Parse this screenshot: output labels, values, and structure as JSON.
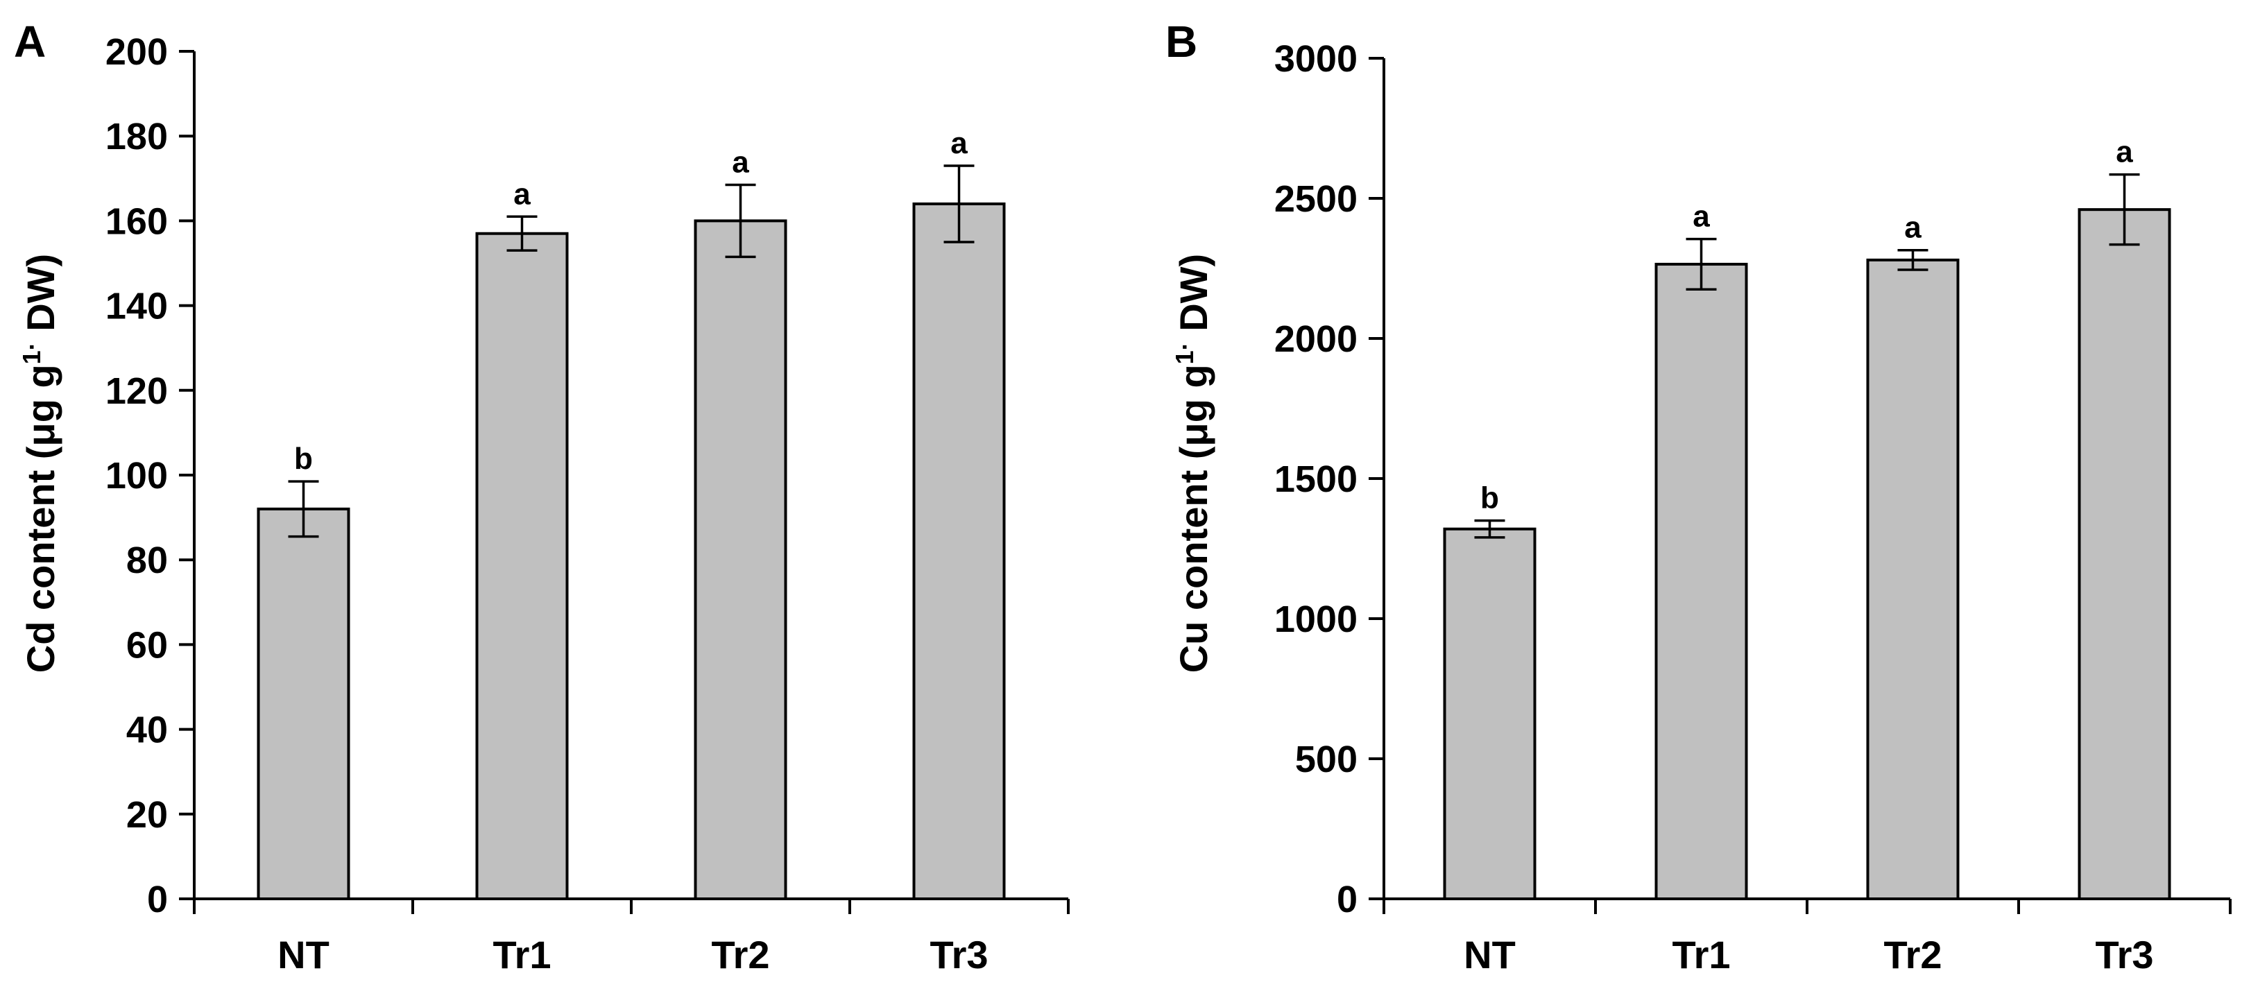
{
  "chart_data": [
    {
      "type": "bar",
      "panel_label": "A",
      "categories": [
        "NT",
        "Tr1",
        "Tr2",
        "Tr3"
      ],
      "values": [
        92,
        157,
        160,
        164
      ],
      "errors": [
        6.5,
        4,
        8.5,
        9
      ],
      "significance": [
        "b",
        "a",
        "a",
        "a"
      ],
      "ylabel": "Cd content (μg g",
      "ylabel_sup": "1·",
      "ylabel_tail": " DW)",
      "ylim": [
        0,
        200
      ],
      "yticks": [
        0,
        20,
        40,
        60,
        80,
        100,
        120,
        140,
        160,
        180,
        200
      ],
      "bar_color": "#c0c0c0",
      "grid": false
    },
    {
      "type": "bar",
      "panel_label": "B",
      "categories": [
        "NT",
        "Tr1",
        "Tr2",
        "Tr3"
      ],
      "values": [
        1320,
        2265,
        2280,
        2460
      ],
      "errors": [
        30,
        90,
        35,
        125
      ],
      "significance": [
        "b",
        "a",
        "a",
        "a"
      ],
      "ylabel": "Cu content (μg g",
      "ylabel_sup": "1·",
      "ylabel_tail": " DW)",
      "ylim": [
        0,
        3000
      ],
      "yticks": [
        0,
        500,
        1000,
        1500,
        2000,
        2500,
        3000
      ],
      "bar_color": "#c0c0c0",
      "grid": false
    }
  ]
}
